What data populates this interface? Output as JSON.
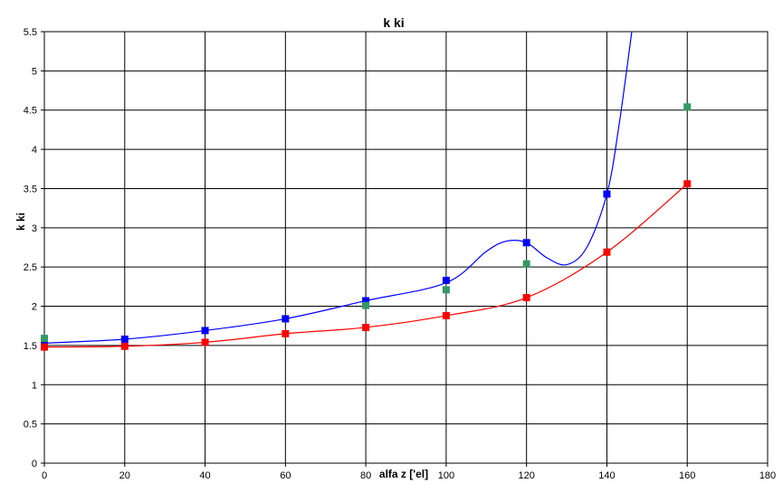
{
  "chart_data": {
    "type": "scatter",
    "title": "k ki",
    "xlabel": "alfa z ['el]",
    "ylabel": "k ki",
    "xlim": [
      0,
      180
    ],
    "ylim": [
      0,
      5.5
    ],
    "xticks": [
      0,
      20,
      40,
      60,
      80,
      100,
      120,
      140,
      160,
      180
    ],
    "yticks": [
      0,
      0.5,
      1,
      1.5,
      2,
      2.5,
      3,
      3.5,
      4,
      4.5,
      5,
      5.5
    ],
    "xtick_labels": [
      "0",
      "20",
      "40",
      "60",
      "80",
      "100",
      "120",
      "140",
      "160",
      "180"
    ],
    "ytick_labels": [
      "0",
      "0.5",
      "1",
      "1.5",
      "2",
      "2.5",
      "3",
      "3.5",
      "4",
      "4.5",
      "5",
      "5.5"
    ],
    "grid": true,
    "legend": "none",
    "series": [
      {
        "color": "#0000ff",
        "marker": "square",
        "x": [
          0,
          20,
          40,
          60,
          80,
          100,
          120,
          140
        ],
        "y": [
          1.53,
          1.58,
          1.69,
          1.84,
          2.07,
          2.33,
          2.81,
          3.43
        ],
        "curve": {
          "x": [
            0,
            20,
            40,
            60,
            80,
            100,
            110,
            115,
            120,
            125,
            130,
            135,
            140,
            143,
            146.2
          ],
          "y": [
            1.53,
            1.58,
            1.69,
            1.84,
            2.07,
            2.3,
            2.7,
            2.83,
            2.81,
            2.62,
            2.53,
            2.75,
            3.43,
            4.3,
            5.5
          ]
        }
      },
      {
        "color": "#ff0000",
        "marker": "square",
        "x": [
          0,
          20,
          40,
          60,
          80,
          100,
          120,
          140,
          160
        ],
        "y": [
          1.48,
          1.49,
          1.54,
          1.65,
          1.73,
          1.88,
          2.11,
          2.69,
          3.56
        ],
        "curve": {
          "x": [
            0,
            20,
            40,
            60,
            80,
            100,
            120,
            140,
            160
          ],
          "y": [
            1.48,
            1.49,
            1.54,
            1.65,
            1.73,
            1.88,
            2.11,
            2.69,
            3.56
          ]
        }
      },
      {
        "color": "#339966",
        "marker": "square",
        "x": [
          0,
          80,
          100,
          120,
          160
        ],
        "y": [
          1.59,
          2.01,
          2.21,
          2.54,
          4.54
        ]
      }
    ]
  }
}
